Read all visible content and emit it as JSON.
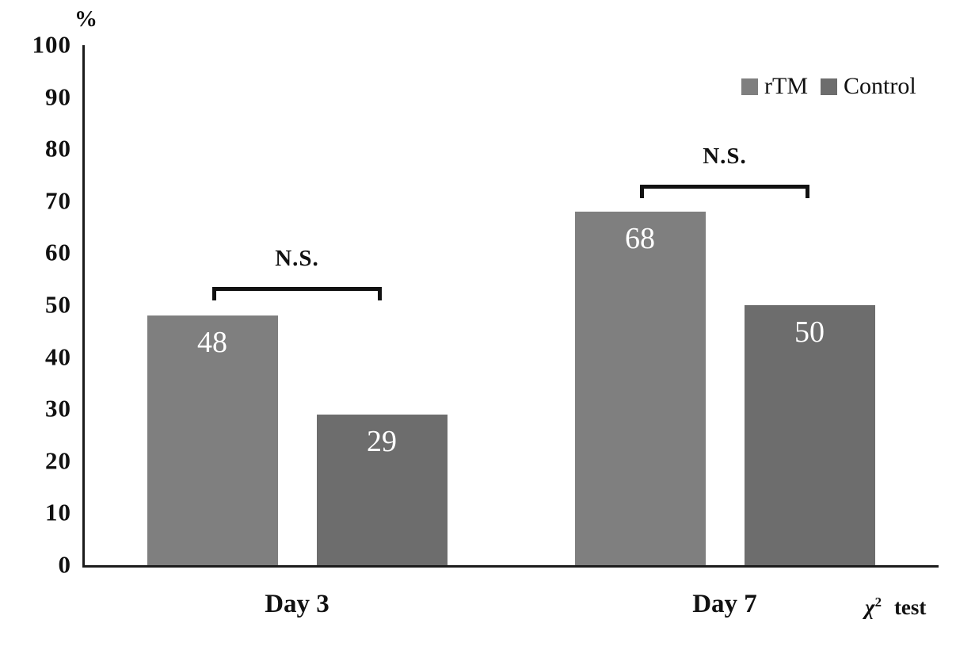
{
  "chart_data": {
    "type": "bar",
    "title": "",
    "unit_label": "%",
    "categories": [
      "Day 3",
      "Day 7"
    ],
    "series": [
      {
        "name": "rTM",
        "values": [
          48,
          68
        ],
        "color": "#7f7f7f"
      },
      {
        "name": "Control",
        "values": [
          29,
          50
        ],
        "color": "#6d6d6d"
      }
    ],
    "y_ticks": [
      0,
      10,
      20,
      30,
      40,
      50,
      60,
      70,
      80,
      90,
      100
    ],
    "ylim": [
      0,
      100
    ],
    "grid": false,
    "legend_position": "top-right",
    "value_label_color": "#ffffff",
    "annotations": [
      {
        "label": "N.S.",
        "category": "Day 3",
        "y_value": 53.5
      },
      {
        "label": "N.S.",
        "category": "Day 7",
        "y_value": 73.2
      }
    ],
    "stat_test": {
      "symbol": "χ",
      "superscript": "2",
      "word": "test"
    }
  }
}
